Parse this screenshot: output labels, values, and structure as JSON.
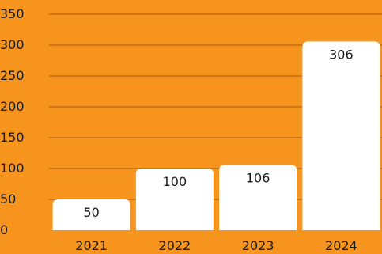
{
  "chart_data": {
    "type": "bar",
    "title": "",
    "xlabel": "",
    "ylabel": "",
    "categories": [
      "2021",
      "2022",
      "2023",
      "2024"
    ],
    "values": [
      50,
      100,
      106,
      306
    ],
    "value_labels": [
      "50",
      "100",
      "106",
      "306"
    ],
    "ylim": [
      0,
      350
    ],
    "yticks": [
      0,
      50,
      100,
      150,
      200,
      250,
      300,
      350
    ],
    "ytick_labels": [
      "0",
      "50",
      "100",
      "150",
      "200",
      "250",
      "300",
      "350"
    ],
    "grid": true,
    "legend": "none",
    "colors": {
      "background": "#F7941D",
      "bar": "#FFFFFF",
      "gridline": "#A65A10",
      "text": "#1a1a1a"
    }
  }
}
